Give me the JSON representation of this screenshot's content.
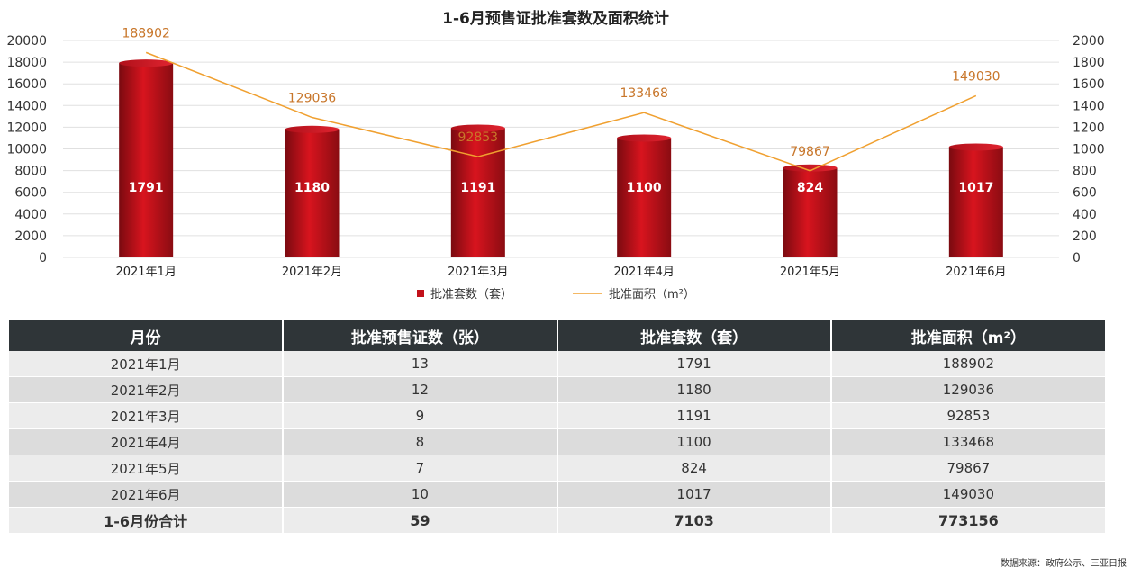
{
  "chart_data": {
    "type": "bar",
    "title": "1-6月预售证批准套数及面积统计",
    "categories": [
      "2021年1月",
      "2021年2月",
      "2021年3月",
      "2021年4月",
      "2021年5月",
      "2021年6月"
    ],
    "series": [
      {
        "name": "批准套数（套）",
        "type": "bar",
        "axis": "right",
        "values": [
          1791,
          1180,
          1191,
          1100,
          824,
          1017
        ],
        "color": "#c2111a"
      },
      {
        "name": "批准面积（m²）",
        "type": "line",
        "axis": "left",
        "values": [
          188902,
          129036,
          92853,
          133468,
          79867,
          149030
        ],
        "color": "#f0a030"
      }
    ],
    "left_axis": {
      "ticks": [
        "20000",
        "18000",
        "16000",
        "14000",
        "12000",
        "10000",
        "8000",
        "6000",
        "4000",
        "2000",
        "0"
      ]
    },
    "right_axis": {
      "ylim": [
        0,
        2000
      ],
      "ticks": [
        "2000",
        "1800",
        "1600",
        "1400",
        "1200",
        "1000",
        "800",
        "600",
        "400",
        "200",
        "0"
      ]
    },
    "line_scale_note": "",
    "legend_position": "bottom",
    "grid": true
  },
  "table": {
    "headers": [
      "月份",
      "批准预售证数（张）",
      "批准套数（套）",
      "批准面积（m²）"
    ],
    "rows": [
      [
        "2021年1月",
        "13",
        "1791",
        "188902"
      ],
      [
        "2021年2月",
        "12",
        "1180",
        "129036"
      ],
      [
        "2021年3月",
        "9",
        "1191",
        "92853"
      ],
      [
        "2021年4月",
        "8",
        "1100",
        "133468"
      ],
      [
        "2021年5月",
        "7",
        "824",
        "79867"
      ],
      [
        "2021年6月",
        "10",
        "1017",
        "149030"
      ]
    ],
    "total": [
      "1-6月份合计",
      "59",
      "7103",
      "773156"
    ]
  },
  "source": "数据来源：政府公示、三亚日报"
}
